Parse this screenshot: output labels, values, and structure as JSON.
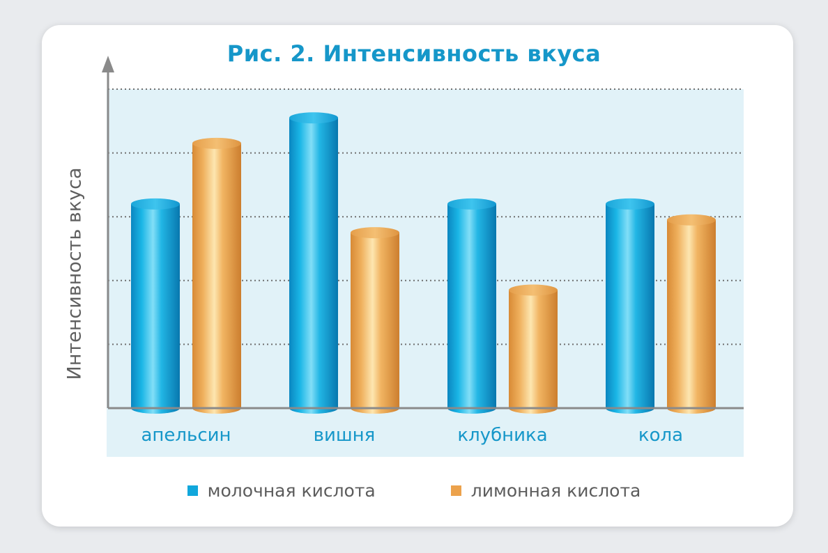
{
  "chart_data": {
    "type": "bar",
    "title": "Рис. 2. Интенсивность вкуса",
    "ylabel": "Интенсивность вкуса",
    "xlabel": "",
    "categories": [
      "апельсин",
      "вишня",
      "клубника",
      "кола"
    ],
    "series": [
      {
        "name": "молочная кислота",
        "color": "#11a7dc",
        "values": [
          3.2,
          4.55,
          3.2,
          3.2
        ]
      },
      {
        "name": "лимонная кислота",
        "color": "#eca24c",
        "values": [
          4.15,
          2.75,
          1.85,
          2.95
        ]
      }
    ],
    "ylim": [
      0,
      5
    ],
    "y_ticks_labeled": false,
    "grid": true,
    "legend_position": "bottom",
    "colors": {
      "title": "#1697c9",
      "category_labels": "#1697c9",
      "plot_background": "#e1f2f8",
      "axis": "#8c8c8c"
    }
  }
}
